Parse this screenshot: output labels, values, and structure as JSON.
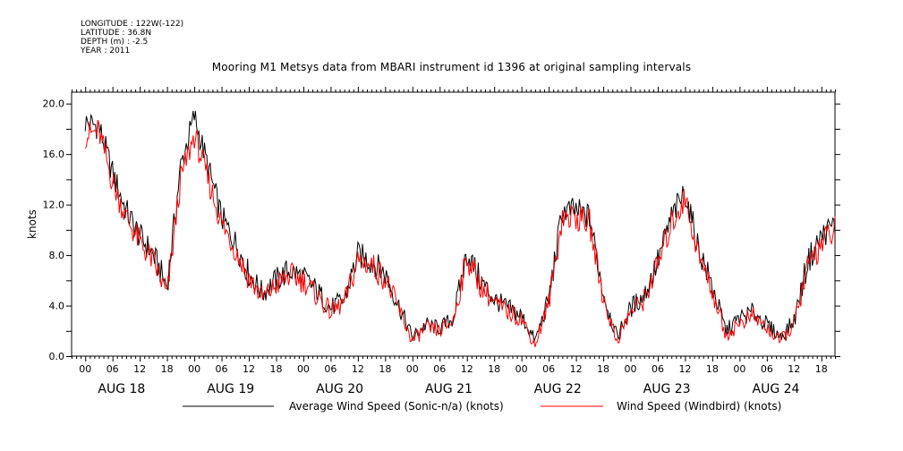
{
  "header": {
    "longitude": "LONGITUDE : 122W(-122)",
    "latitude": "LATITUDE : 36.8N",
    "depth": "DEPTH (m) : -2.5",
    "year": "YEAR : 2011"
  },
  "chart_data": {
    "type": "line",
    "title": "Mooring M1 Metsys data from MBARI instrument id 1396 at original sampling intervals",
    "ylabel": "knots",
    "xlabel": "",
    "ylim": [
      0,
      20.9
    ],
    "xlim_hours": [
      -3,
      165
    ],
    "y_ticks": [
      "0.0",
      "4.0",
      "8.0",
      "12.0",
      "16.0",
      "20.0"
    ],
    "y_tick_values": [
      0,
      4,
      8,
      12,
      16,
      20
    ],
    "x_tick_labels": [
      "00",
      "06",
      "12",
      "18",
      "00",
      "06",
      "12",
      "18",
      "00",
      "06",
      "12",
      "18",
      "00",
      "06",
      "12",
      "18",
      "00",
      "06",
      "12",
      "18",
      "00",
      "06",
      "12",
      "18",
      "00",
      "06",
      "12",
      "18"
    ],
    "day_labels": [
      "AUG 18",
      "AUG 19",
      "AUG 20",
      "AUG 21",
      "AUG 22",
      "AUG 23",
      "AUG 24"
    ],
    "x": [
      0,
      3,
      6,
      9,
      12,
      15,
      18,
      21,
      24,
      27,
      30,
      33,
      36,
      39,
      42,
      45,
      48,
      51,
      54,
      57,
      60,
      63,
      66,
      69,
      72,
      75,
      78,
      81,
      84,
      87,
      90,
      93,
      96,
      99,
      102,
      105,
      108,
      111,
      114,
      117,
      120,
      123,
      126,
      129,
      132,
      135,
      138,
      141,
      144,
      147,
      150,
      153,
      156,
      159,
      162,
      165
    ],
    "series": [
      {
        "name": "Average Wind Speed (Sonic-n/a) (knots)",
        "color": "#000000",
        "values": [
          18.5,
          18.2,
          14.5,
          11.5,
          9.5,
          8.0,
          5.5,
          15.0,
          19.0,
          15.0,
          11.0,
          9.0,
          6.5,
          5.0,
          6.0,
          6.8,
          6.2,
          5.2,
          3.8,
          4.5,
          8.0,
          7.5,
          6.5,
          4.0,
          1.5,
          2.5,
          2.2,
          3.0,
          8.2,
          6.0,
          4.5,
          3.8,
          3.2,
          1.2,
          4.5,
          11.5,
          11.5,
          11.0,
          5.0,
          1.5,
          3.8,
          4.8,
          7.5,
          11.0,
          13.0,
          8.5,
          5.5,
          2.0,
          3.0,
          3.5,
          2.5,
          1.5,
          2.8,
          7.5,
          9.5,
          10.5
        ]
      },
      {
        "name": "Wind Speed (Windbird) (knots)",
        "color": "#ff0000",
        "values": [
          17.5,
          17.8,
          13.8,
          11.0,
          9.0,
          7.5,
          4.8,
          14.0,
          17.5,
          14.0,
          10.5,
          8.5,
          6.2,
          4.6,
          5.6,
          6.4,
          6.0,
          4.8,
          3.5,
          4.2,
          7.6,
          7.2,
          6.2,
          3.7,
          1.2,
          2.2,
          2.0,
          2.8,
          7.8,
          5.6,
          4.2,
          3.5,
          3.0,
          0.9,
          4.2,
          11.0,
          11.0,
          10.5,
          4.6,
          1.2,
          3.5,
          4.5,
          7.2,
          10.5,
          12.5,
          8.0,
          5.2,
          1.6,
          2.6,
          3.2,
          2.2,
          1.2,
          2.5,
          7.0,
          9.0,
          10.0
        ]
      }
    ],
    "legend": [
      {
        "label": "Average Wind Speed (Sonic-n/a) (knots)",
        "color": "#000000"
      },
      {
        "label": "Wind Speed (Windbird) (knots)",
        "color": "#ff0000"
      }
    ],
    "legend_position": "bottom",
    "grid": false
  }
}
